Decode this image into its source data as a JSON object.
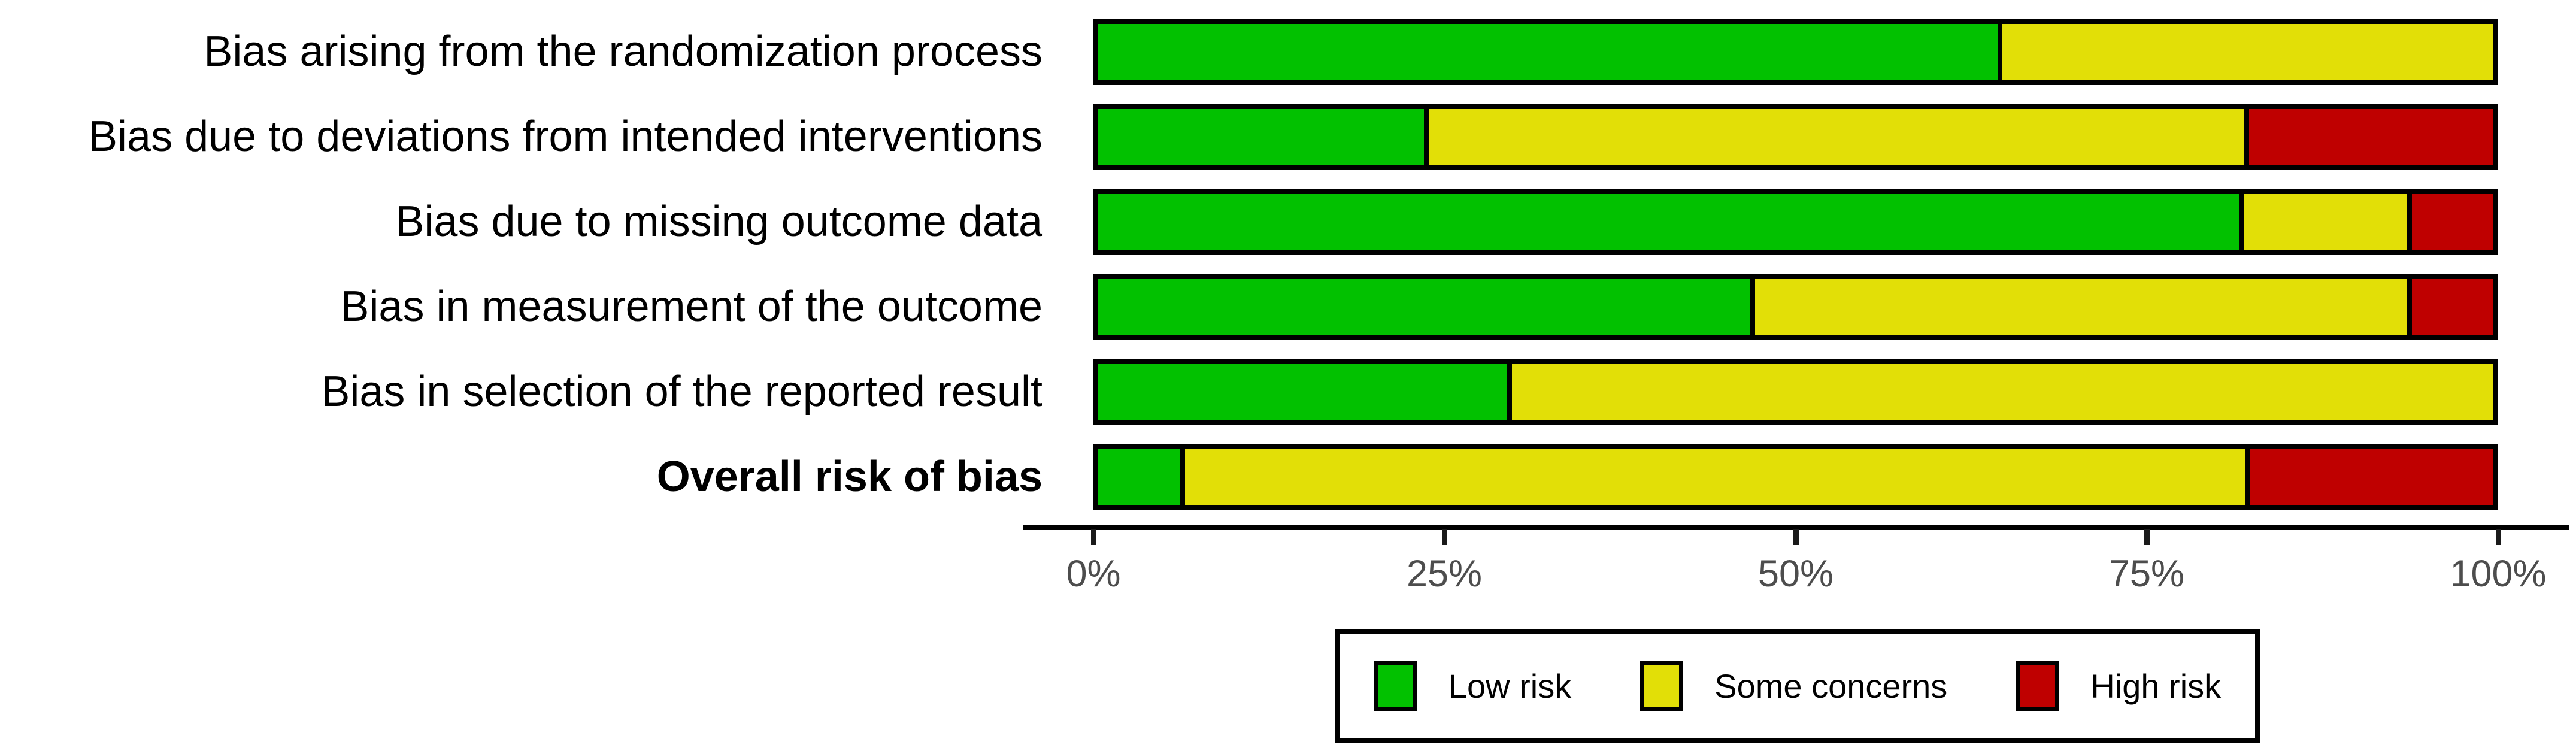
{
  "chart_data": {
    "type": "bar",
    "subtype": "horizontal-stacked-percentage",
    "title": "",
    "xlabel": "",
    "ylabel": "",
    "axis": {
      "ticks": [
        "0%",
        "25%",
        "50%",
        "75%",
        "100%"
      ],
      "xlim": [
        0,
        100
      ],
      "grid": false
    },
    "colors": {
      "low_risk": "#02C100",
      "some_concerns": "#E2DF07",
      "high_risk": "#BF0000",
      "bar_border": "#000000",
      "tick_text": "#4d4d4d"
    },
    "rows": [
      {
        "label": "Bias arising from the randomization process",
        "low_risk_pct": 64.7,
        "some_concerns_pct": 35.3,
        "high_risk_pct": 0
      },
      {
        "label": "Bias due to deviations from intended interventions",
        "low_risk_pct": 23.5,
        "some_concerns_pct": 58.8,
        "high_risk_pct": 17.6
      },
      {
        "label": "Bias due to missing outcome data",
        "low_risk_pct": 82.4,
        "some_concerns_pct": 11.8,
        "high_risk_pct": 5.9
      },
      {
        "label": "Bias in measurement of the outcome",
        "low_risk_pct": 47.1,
        "some_concerns_pct": 47.1,
        "high_risk_pct": 5.9
      },
      {
        "label": "Bias in selection of the reported result",
        "low_risk_pct": 29.4,
        "some_concerns_pct": 70.6,
        "high_risk_pct": 0
      },
      {
        "label": "Overall risk of bias",
        "low_risk_pct": 5.9,
        "some_concerns_pct": 76.5,
        "high_risk_pct": 17.6
      }
    ],
    "legend": {
      "position": "bottom",
      "items": [
        {
          "label": "Low risk",
          "color": "#02C100"
        },
        {
          "label": "Some concerns",
          "color": "#E2DF07"
        },
        {
          "label": "High risk",
          "color": "#BF0000"
        }
      ]
    }
  }
}
